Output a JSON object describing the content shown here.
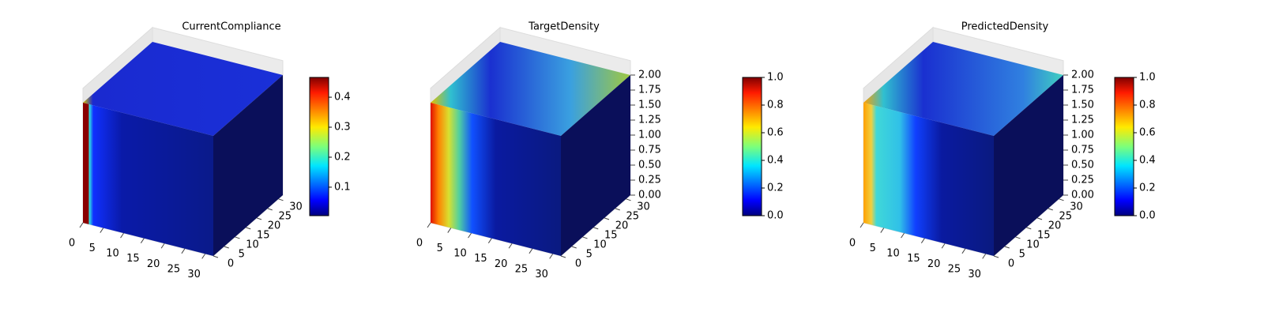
{
  "chart_data": [
    {
      "type": "voxel3d",
      "title": "CurrentCompliance",
      "xlim": [
        0,
        32
      ],
      "xticks": [
        0,
        5,
        10,
        15,
        20,
        25,
        30
      ],
      "ylim": [
        0,
        32
      ],
      "yticks": [
        0,
        5,
        10,
        15,
        20,
        25,
        30
      ],
      "colorbar": {
        "lim": [
          0.005,
          0.466
        ],
        "ticks": [
          0.1,
          0.2,
          0.3,
          0.4
        ]
      }
    },
    {
      "type": "voxel3d",
      "title": "TargetDensity",
      "xlim": [
        0,
        32
      ],
      "xticks": [
        0,
        5,
        10,
        15,
        20,
        25,
        30
      ],
      "ylim": [
        0,
        32
      ],
      "yticks": [
        0,
        5,
        10,
        15,
        20,
        25,
        30
      ],
      "zlim": [
        0,
        2
      ],
      "zticks": [
        {
          "value": 0,
          "label": "0.00"
        },
        {
          "value": 0.25,
          "label": "0.25"
        },
        {
          "value": 0.5,
          "label": "0.50"
        },
        {
          "value": 0.75,
          "label": "0.75"
        },
        {
          "value": 1,
          "label": "1.00"
        },
        {
          "value": 1.25,
          "label": "1.25"
        },
        {
          "value": 1.5,
          "label": "1.50"
        },
        {
          "value": 1.75,
          "label": "1.75"
        },
        {
          "value": 2,
          "label": "2.00"
        }
      ],
      "colorbar": {
        "lim": [
          0,
          1
        ],
        "ticks": [
          {
            "value": 0,
            "label": "0.0"
          },
          0.2,
          0.4,
          0.6,
          0.8,
          {
            "value": 1,
            "label": "1.0"
          }
        ]
      }
    },
    {
      "type": "voxel3d",
      "title": "PredictedDensity",
      "xlim": [
        0,
        32
      ],
      "xticks": [
        0,
        5,
        10,
        15,
        20,
        25,
        30
      ],
      "ylim": [
        0,
        32
      ],
      "yticks": [
        0,
        5,
        10,
        15,
        20,
        25,
        30
      ],
      "zlim": [
        0,
        2
      ],
      "zticks": [
        {
          "value": 0,
          "label": "0.00"
        },
        {
          "value": 0.25,
          "label": "0.25"
        },
        {
          "value": 0.5,
          "label": "0.50"
        },
        {
          "value": 0.75,
          "label": "0.75"
        },
        {
          "value": 1,
          "label": "1.00"
        },
        {
          "value": 1.25,
          "label": "1.25"
        },
        {
          "value": 1.5,
          "label": "1.50"
        },
        {
          "value": 1.75,
          "label": "1.75"
        },
        {
          "value": 2,
          "label": "2.00"
        }
      ],
      "colorbar": {
        "lim": [
          0,
          1
        ],
        "ticks": [
          {
            "value": 0,
            "label": "0.0"
          },
          0.2,
          0.4,
          0.6,
          0.8,
          {
            "value": 1,
            "label": "1.0"
          }
        ]
      }
    }
  ]
}
